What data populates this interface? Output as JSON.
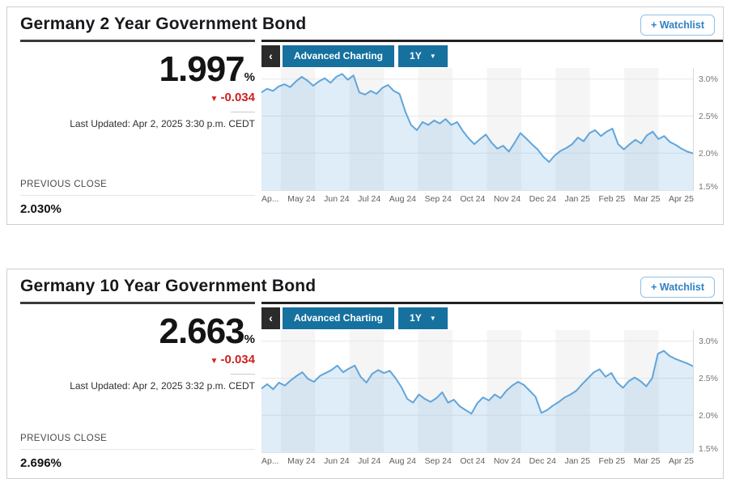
{
  "colors": {
    "accent_teal": "#16719f",
    "negative_red": "#d02020",
    "watchlist_blue": "#2f81c2",
    "line_blue": "#61a5da"
  },
  "cards": [
    {
      "title": "Germany 2 Year Government Bond",
      "watchlist_label": "+ Watchlist",
      "price": "1.997",
      "price_unit": "%",
      "change_icon": "▼",
      "change": "-0.034",
      "last_updated": "Last Updated: Apr 2, 2025 3:30 p.m. CEDT",
      "previous_close_label": "PREVIOUS CLOSE",
      "previous_close": "2.030%",
      "toolbar": {
        "back": "‹",
        "advanced_charting": "Advanced Charting",
        "range": "1Y",
        "caret": "▼"
      }
    },
    {
      "title": "Germany 10 Year Government Bond",
      "watchlist_label": "+ Watchlist",
      "price": "2.663",
      "price_unit": "%",
      "change_icon": "▼",
      "change": "-0.034",
      "last_updated": "Last Updated: Apr 2, 2025 3:32 p.m. CEDT",
      "previous_close_label": "PREVIOUS CLOSE",
      "previous_close": "2.696%",
      "toolbar": {
        "back": "‹",
        "advanced_charting": "Advanced Charting",
        "range": "1Y",
        "caret": "▼"
      }
    }
  ],
  "chart_data": [
    {
      "type": "area",
      "title": "Germany 2 Year Government Bond — 1Y yield history",
      "x_labels": [
        "Ap...",
        "May 24",
        "Jun 24",
        "Jul 24",
        "Aug 24",
        "Sep 24",
        "Oct 24",
        "Nov 24",
        "Dec 24",
        "Jan 25",
        "Feb 25",
        "Mar 25",
        "Apr 25"
      ],
      "y_axis": [
        {
          "label": "3.0%",
          "value": 3.0
        },
        {
          "label": "2.5%",
          "value": 2.5
        },
        {
          "label": "2.0%",
          "value": 2.0
        },
        {
          "label": "1.5%",
          "value": 1.5
        }
      ],
      "ylim": [
        1.5,
        3.15
      ],
      "unit": "%",
      "grid": "horizontal",
      "legend": "none",
      "band_color": "#f5f5f5",
      "grid_color": "#e7e7e7",
      "line_color": "#61a5da",
      "fill_color": "rgba(97,165,218,0.2)",
      "values": [
        2.82,
        2.87,
        2.84,
        2.9,
        2.93,
        2.89,
        2.97,
        3.03,
        2.98,
        2.91,
        2.97,
        3.01,
        2.95,
        3.03,
        3.07,
        2.99,
        3.05,
        2.82,
        2.79,
        2.84,
        2.8,
        2.88,
        2.92,
        2.84,
        2.8,
        2.56,
        2.38,
        2.31,
        2.42,
        2.38,
        2.44,
        2.4,
        2.46,
        2.38,
        2.42,
        2.3,
        2.2,
        2.12,
        2.19,
        2.25,
        2.14,
        2.06,
        2.1,
        2.02,
        2.14,
        2.27,
        2.2,
        2.12,
        2.05,
        1.95,
        1.88,
        1.97,
        2.03,
        2.07,
        2.12,
        2.21,
        2.16,
        2.27,
        2.31,
        2.23,
        2.29,
        2.33,
        2.12,
        2.05,
        2.12,
        2.18,
        2.13,
        2.24,
        2.29,
        2.19,
        2.23,
        2.15,
        2.11,
        2.06,
        2.02,
        1.997
      ]
    },
    {
      "type": "area",
      "title": "Germany 10 Year Government Bond — 1Y yield history",
      "x_labels": [
        "Ap...",
        "May 24",
        "Jun 24",
        "Jul 24",
        "Aug 24",
        "Sep 24",
        "Oct 24",
        "Nov 24",
        "Dec 24",
        "Jan 25",
        "Feb 25",
        "Mar 25",
        "Apr 25"
      ],
      "y_axis": [
        {
          "label": "3.0%",
          "value": 3.0
        },
        {
          "label": "2.5%",
          "value": 2.5
        },
        {
          "label": "2.0%",
          "value": 2.0
        },
        {
          "label": "1.5%",
          "value": 1.5
        }
      ],
      "ylim": [
        1.5,
        3.15
      ],
      "unit": "%",
      "grid": "horizontal",
      "legend": "none",
      "band_color": "#f5f5f5",
      "grid_color": "#e7e7e7",
      "line_color": "#61a5da",
      "fill_color": "rgba(97,165,218,0.2)",
      "values": [
        2.36,
        2.42,
        2.35,
        2.44,
        2.4,
        2.47,
        2.53,
        2.58,
        2.49,
        2.45,
        2.53,
        2.57,
        2.61,
        2.67,
        2.58,
        2.63,
        2.67,
        2.52,
        2.44,
        2.56,
        2.61,
        2.57,
        2.6,
        2.5,
        2.38,
        2.22,
        2.17,
        2.28,
        2.22,
        2.18,
        2.23,
        2.31,
        2.17,
        2.21,
        2.12,
        2.07,
        2.02,
        2.16,
        2.24,
        2.2,
        2.28,
        2.23,
        2.33,
        2.4,
        2.45,
        2.41,
        2.33,
        2.25,
        2.03,
        2.07,
        2.13,
        2.18,
        2.24,
        2.28,
        2.33,
        2.42,
        2.5,
        2.58,
        2.62,
        2.52,
        2.57,
        2.44,
        2.37,
        2.46,
        2.51,
        2.46,
        2.39,
        2.5,
        2.83,
        2.87,
        2.8,
        2.76,
        2.73,
        2.7,
        2.663
      ]
    }
  ]
}
